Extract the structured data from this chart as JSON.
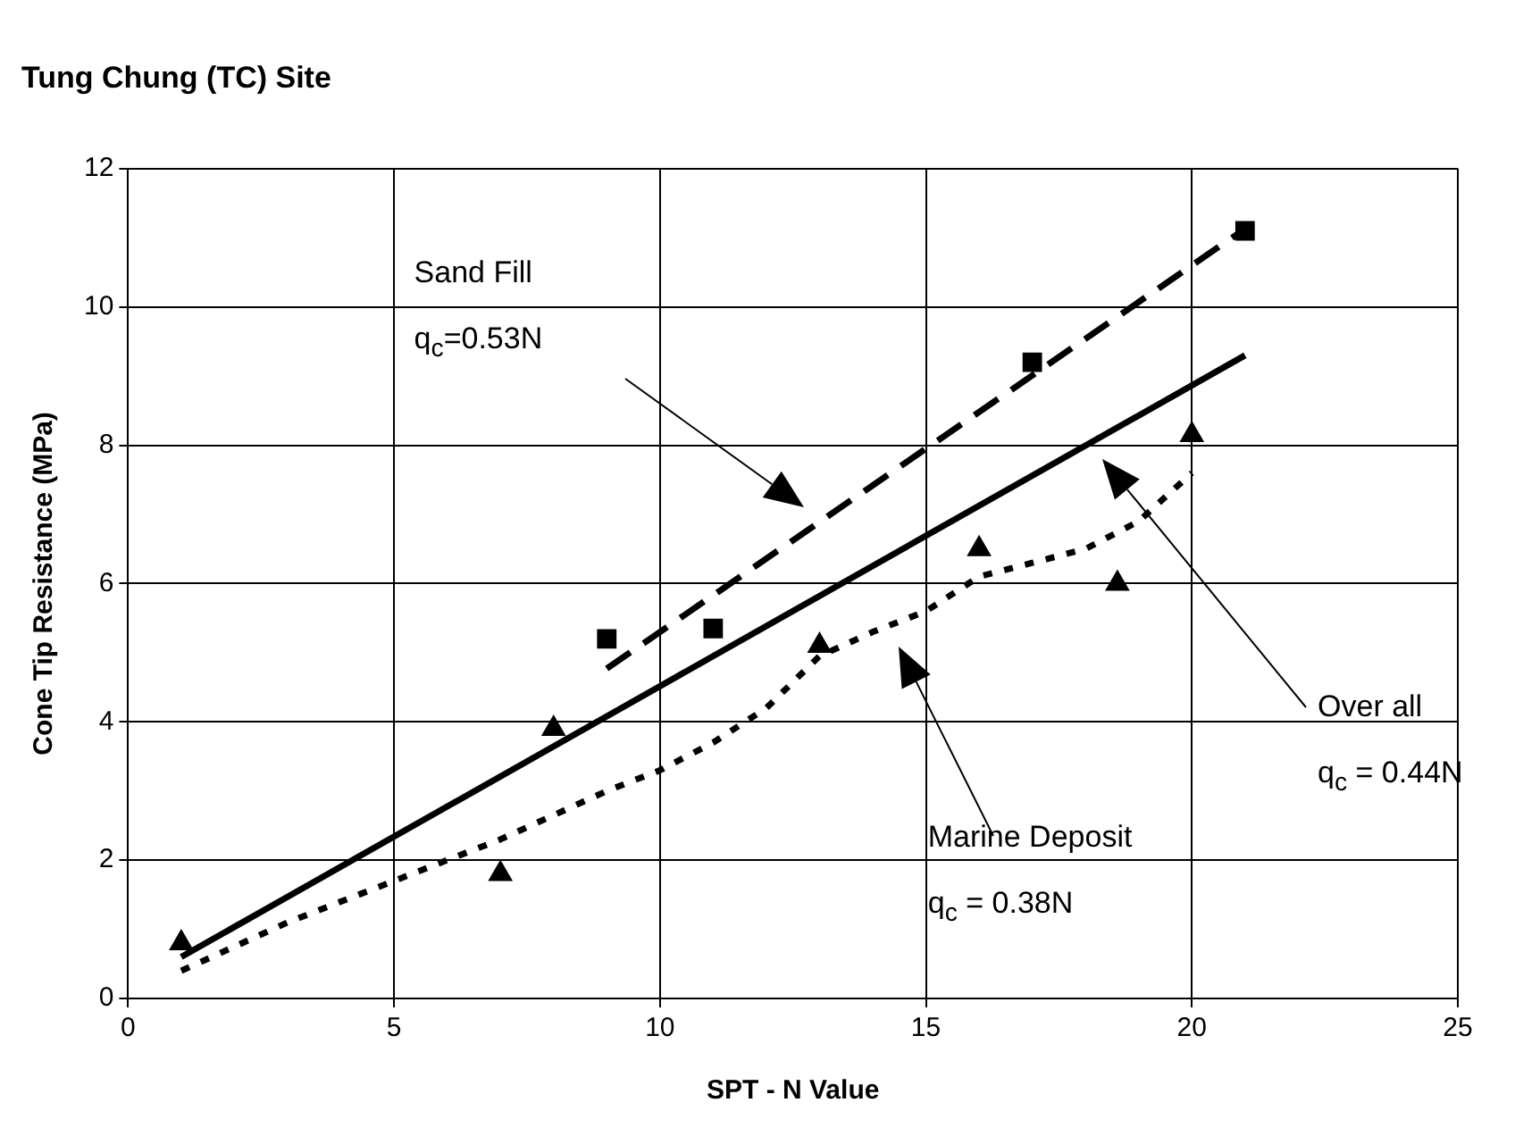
{
  "chart_data": {
    "type": "scatter",
    "title": "Tung Chung (TC) Site",
    "xlabel": "SPT - N Value",
    "ylabel": "Cone Tip Resistance (MPa)",
    "xlim": [
      0,
      25
    ],
    "xticks": [
      0,
      5,
      10,
      15,
      20,
      25
    ],
    "ylim": [
      0,
      12
    ],
    "yticks": [
      0,
      2,
      4,
      6,
      8,
      10,
      12
    ],
    "grid": true,
    "legend": false,
    "series": [
      {
        "type": "scatter",
        "color": "#000000",
        "marker": "square",
        "x": [
          9,
          11,
          17,
          21
        ],
        "values": [
          5.2,
          5.35,
          9.2,
          11.1
        ]
      },
      {
        "type": "scatter",
        "color": "#000000",
        "marker": "triangle",
        "x": [
          1,
          7,
          8,
          13,
          16,
          18.6,
          20
        ],
        "values": [
          0.8,
          1.8,
          3.9,
          5.1,
          6.5,
          6.0,
          8.15
        ]
      },
      {
        "type": "line",
        "color": "#000000",
        "marker": "none",
        "line_style": "dashed",
        "x": [
          9,
          21
        ],
        "values": [
          4.77,
          11.13
        ]
      },
      {
        "type": "line",
        "color": "#000000",
        "marker": "none",
        "line_style": "solid",
        "x": [
          1,
          21
        ],
        "values": [
          0.6,
          9.3
        ]
      },
      {
        "type": "line",
        "color": "#000000",
        "marker": "none",
        "line_style": "dotted",
        "x": [
          1,
          3,
          5,
          7,
          9,
          10,
          11,
          12,
          13,
          14,
          15,
          16,
          17,
          18,
          19,
          20
        ],
        "values": [
          0.4,
          1.1,
          1.7,
          2.3,
          3.0,
          3.3,
          3.7,
          4.2,
          4.95,
          5.3,
          5.6,
          6.1,
          6.3,
          6.5,
          6.9,
          7.6
        ]
      }
    ],
    "annotations": [
      "Sand Fill\nq$_{c}$=0.53N",
      "Over all\nq$_{c}$ = 0.44N",
      "Marine Deposit\nq$_{c}$ = 0.38N"
    ]
  }
}
